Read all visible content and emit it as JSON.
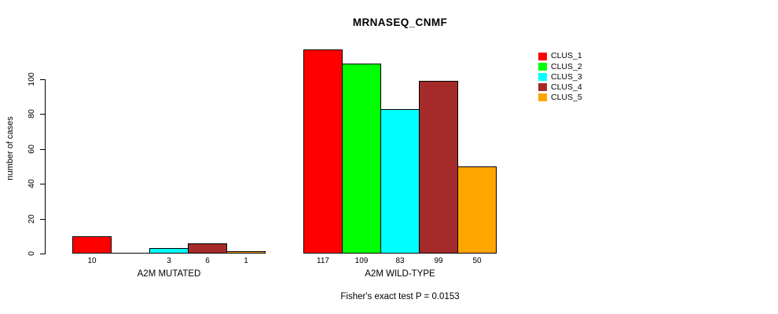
{
  "chart_data": {
    "type": "bar",
    "title": "MRNASEQ_CNMF",
    "ylabel": "number of cases",
    "xlabel": "",
    "ylim": [
      0,
      100
    ],
    "yticks": [
      0,
      20,
      40,
      60,
      80,
      100
    ],
    "grid": false,
    "legend_position": "right",
    "categories": [
      "A2M MUTATED",
      "A2M WILD-TYPE"
    ],
    "series": [
      {
        "name": "CLUS_1",
        "color": "#ff0000",
        "values": [
          10,
          117
        ]
      },
      {
        "name": "CLUS_2",
        "color": "#00ff00",
        "values": [
          0,
          109
        ]
      },
      {
        "name": "CLUS_3",
        "color": "#00ffff",
        "values": [
          3,
          83
        ]
      },
      {
        "name": "CLUS_4",
        "color": "#a52a2a",
        "values": [
          6,
          99
        ]
      },
      {
        "name": "CLUS_5",
        "color": "#ffa500",
        "values": [
          1,
          50
        ]
      }
    ],
    "bar_value_labels": [
      [
        "10",
        "",
        "3",
        "6",
        "1"
      ],
      [
        "117",
        "109",
        "83",
        "99",
        "50"
      ]
    ],
    "annotation": "Fisher's exact test P = 0.0153",
    "axis_color": "#000000",
    "bar_border_color": "#000000",
    "background_color": "#ffffff"
  }
}
